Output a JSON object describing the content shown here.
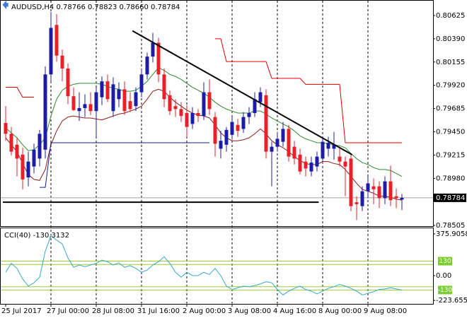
{
  "chart_data": [
    {
      "type": "candlestick",
      "title": "AUDUSD,H4  0.78766 0.78823 0.78660 0.78784",
      "categories": [
        "25 Jul 2017",
        null,
        null,
        null,
        null,
        null,
        null,
        null,
        "27 Jul 00:00",
        null,
        null,
        null,
        null,
        null,
        null,
        null,
        "28 Jul 08:00",
        null,
        null,
        null,
        null,
        null,
        null,
        null,
        "31 Jul 16:00",
        null,
        null,
        null,
        null,
        null,
        null,
        null,
        "2 Aug 00:00",
        null,
        null,
        null,
        null,
        null,
        null,
        null,
        "3 Aug 08:00",
        null,
        null,
        null,
        null,
        null,
        null,
        null,
        "4 Aug 16:00",
        null,
        null,
        null,
        null,
        null,
        null,
        null,
        "8 Aug 00:00",
        null,
        null,
        null,
        null,
        null,
        null,
        null,
        "9 Aug 08:00",
        null,
        null,
        null,
        null,
        null,
        null
      ],
      "open": [
        0.7954,
        0.7943,
        0.7932,
        0.7922,
        0.7899,
        0.791,
        0.7918,
        0.7927,
        0.8003,
        0.8053,
        0.8022,
        0.8009,
        0.7981,
        0.7966,
        0.7969,
        0.7973,
        0.7966,
        0.798,
        0.7996,
        0.7966,
        0.7978,
        0.7988,
        0.7976,
        0.7971,
        0.7985,
        0.8003,
        0.8021,
        0.8035,
        0.8003,
        0.7982,
        0.7971,
        0.7968,
        0.7964,
        0.7953,
        0.7964,
        0.7961,
        0.7985,
        0.796,
        0.7928,
        0.7932,
        0.7942,
        0.7952,
        0.7948,
        0.796,
        0.7964,
        0.7975,
        0.7982,
        0.7925,
        0.793,
        0.7935,
        0.7948,
        0.793,
        0.7922,
        0.7915,
        0.7905,
        0.791,
        0.7918,
        0.7928,
        0.7928,
        0.792,
        0.7915,
        0.7918,
        0.7874,
        0.787,
        0.7885,
        0.789,
        0.789,
        0.7878,
        0.7895,
        0.788,
        0.78766
      ],
      "high": [
        0.7971,
        0.795,
        0.7939,
        0.7929,
        0.7925,
        0.7933,
        0.7947,
        0.8011,
        0.8066,
        0.8064,
        0.8028,
        0.8014,
        0.799,
        0.7985,
        0.7983,
        0.7985,
        0.799,
        0.8001,
        0.8003,
        0.8,
        0.7995,
        0.7996,
        0.7985,
        0.799,
        0.8008,
        0.8025,
        0.8045,
        0.804,
        0.8009,
        0.7987,
        0.7978,
        0.7975,
        0.7972,
        0.797,
        0.7968,
        0.7995,
        0.7998,
        0.7965,
        0.7946,
        0.795,
        0.796,
        0.7958,
        0.7965,
        0.797,
        0.7985,
        0.799,
        0.7988,
        0.7935,
        0.7945,
        0.7955,
        0.7952,
        0.7936,
        0.7928,
        0.792,
        0.792,
        0.7925,
        0.794,
        0.794,
        0.7945,
        0.793,
        0.792,
        0.7923,
        0.788,
        0.789,
        0.79,
        0.7898,
        0.7895,
        0.79,
        0.7911,
        0.7888,
        0.78823
      ],
      "low": [
        0.7936,
        0.7921,
        0.79,
        0.7887,
        0.789,
        0.7903,
        0.791,
        0.7918,
        0.7995,
        0.8016,
        0.7996,
        0.7973,
        0.7966,
        0.7956,
        0.796,
        0.7962,
        0.794,
        0.7972,
        0.7975,
        0.796,
        0.797,
        0.7962,
        0.7965,
        0.7966,
        0.798,
        0.7998,
        0.8015,
        0.7995,
        0.797,
        0.7962,
        0.796,
        0.7955,
        0.794,
        0.7948,
        0.7955,
        0.7957,
        0.7962,
        0.792,
        0.7918,
        0.7925,
        0.7937,
        0.794,
        0.7944,
        0.7953,
        0.796,
        0.797,
        0.7918,
        0.789,
        0.7925,
        0.793,
        0.7915,
        0.7912,
        0.7902,
        0.79,
        0.79,
        0.7905,
        0.7913,
        0.792,
        0.7917,
        0.791,
        0.788,
        0.7865,
        0.7856,
        0.7865,
        0.7878,
        0.7872,
        0.7868,
        0.7872,
        0.787,
        0.7868,
        0.7866
      ],
      "close": [
        0.7943,
        0.7925,
        0.7918,
        0.7897,
        0.7915,
        0.7927,
        0.7943,
        0.8003,
        0.805,
        0.8022,
        0.8009,
        0.7981,
        0.7967,
        0.7969,
        0.7973,
        0.7966,
        0.7985,
        0.7996,
        0.7978,
        0.7993,
        0.7988,
        0.7966,
        0.7968,
        0.7985,
        0.8003,
        0.8021,
        0.8035,
        0.8003,
        0.7978,
        0.7966,
        0.7968,
        0.7961,
        0.795,
        0.7964,
        0.7961,
        0.7985,
        0.7968,
        0.7933,
        0.7936,
        0.7947,
        0.7955,
        0.7946,
        0.796,
        0.7964,
        0.7978,
        0.7985,
        0.7925,
        0.793,
        0.7938,
        0.7948,
        0.792,
        0.7918,
        0.7905,
        0.7908,
        0.7914,
        0.792,
        0.7935,
        0.7934,
        0.7932,
        0.7915,
        0.791,
        0.787,
        0.7872,
        0.7885,
        0.7893,
        0.7887,
        0.7878,
        0.7895,
        0.7876,
        0.7878,
        0.78784
      ],
      "up_color": "#1c1ca8",
      "down_color": "#e8202a",
      "overlays": [
        {
          "color": "#2e8b2e",
          "values": [
            0.7949,
            0.7944,
            0.7939,
            0.7932,
            0.7926,
            0.7927,
            0.7932,
            0.7939,
            0.7961,
            0.7978,
            0.7987,
            0.7991,
            0.7993,
            0.7994,
            0.7994,
            0.7994,
            0.7994,
            0.7993,
            0.7991,
            0.7989,
            0.7988,
            0.7986,
            0.7986,
            0.7987,
            0.7991,
            0.7996,
            0.8003,
            0.801,
            0.8007,
            0.8003,
            0.8001,
            0.7998,
            0.7994,
            0.799,
            0.7987,
            0.7984,
            0.798,
            0.7975,
            0.7971,
            0.7968,
            0.7966,
            0.7964,
            0.7964,
            0.7964,
            0.7966,
            0.7966,
            0.7963,
            0.7959,
            0.7956,
            0.7953,
            0.795,
            0.7946,
            0.7941,
            0.7938,
            0.7936,
            0.7934,
            0.7934,
            0.7933,
            0.7932,
            0.7931,
            0.7929,
            0.7923,
            0.7918,
            0.7914,
            0.7912,
            0.7909,
            0.7907,
            0.7907,
            0.7906,
            0.7903,
            0.79
          ]
        },
        {
          "color": "#8b1a1a",
          "values": [
            0.7939,
            0.7932,
            0.7925,
            0.7913,
            0.7902,
            0.7897,
            0.7896,
            0.7907,
            0.7932,
            0.7946,
            0.7956,
            0.796,
            0.7961,
            0.796,
            0.7959,
            0.7959,
            0.7958,
            0.7957,
            0.7959,
            0.7961,
            0.7963,
            0.7964,
            0.7966,
            0.7968,
            0.7971,
            0.7978,
            0.7986,
            0.7988,
            0.7986,
            0.798,
            0.7975,
            0.7971,
            0.7967,
            0.7964,
            0.7962,
            0.7961,
            0.7959,
            0.7952,
            0.7944,
            0.7939,
            0.7936,
            0.7936,
            0.7937,
            0.7939,
            0.7943,
            0.7948,
            0.7943,
            0.7936,
            0.7932,
            0.7929,
            0.7925,
            0.792,
            0.7916,
            0.7913,
            0.7912,
            0.7912,
            0.7915,
            0.7915,
            0.7913,
            0.7912,
            0.7907,
            0.79,
            0.7893,
            0.7887,
            0.7885,
            0.7883,
            0.788,
            0.788,
            0.7879,
            0.7877,
            0.7876
          ]
        },
        {
          "color": "#e00000",
          "values": [
            0.799,
            0.799,
            0.799,
            0.798,
            0.798,
            0.798,
            null,
            null,
            null,
            null,
            null,
            null,
            null,
            null,
            null,
            null,
            null,
            null,
            null,
            null,
            null,
            null,
            null,
            null,
            null,
            null,
            null,
            null,
            null,
            null,
            null,
            null,
            null,
            null,
            null,
            null,
            null,
            0.8039,
            0.8039,
            0.8016,
            0.8016,
            0.8016,
            0.8016,
            0.8016,
            0.8016,
            0.8016,
            0.8016,
            0.7999,
            0.7999,
            0.7999,
            0.7999,
            0.7999,
            0.7999,
            0.7993,
            0.7993,
            0.7993,
            0.7993,
            0.7993,
            0.7993,
            0.7993,
            0.7934,
            0.7934,
            0.7934,
            0.7934,
            0.7934,
            0.7934,
            0.7934,
            0.7934,
            0.7934,
            0.7934,
            0.7934
          ]
        },
        {
          "color": "#1a1a8c",
          "values": [
            null,
            null,
            null,
            null,
            null,
            null,
            0.7889,
            0.7889,
            0.7934,
            0.7934,
            0.7934,
            0.7934,
            0.7934,
            0.7934,
            0.7934,
            0.7934,
            0.7934,
            0.7934,
            0.7934,
            0.7934,
            0.7934,
            0.7934,
            0.7934,
            0.7934,
            0.7934,
            0.7934,
            0.7934,
            0.7934,
            0.7934,
            0.7934,
            0.7934,
            0.7934,
            0.7934,
            0.7934,
            0.7934,
            0.7934,
            0.7934,
            null,
            null,
            null,
            null,
            null,
            null,
            null,
            null,
            null,
            null,
            null,
            null,
            null,
            null,
            null,
            null,
            null,
            null,
            null,
            null,
            null,
            null,
            null,
            null,
            null,
            null,
            null,
            null,
            null,
            null,
            null,
            null,
            null,
            null
          ]
        }
      ],
      "trendlines": [
        {
          "color": "#000000",
          "x": [
            22.4,
            61.2
          ],
          "y": [
            0.8047,
            0.7922
          ]
        },
        {
          "color": "#000000",
          "x": [
            -0.5,
            55.3
          ],
          "y": [
            0.7874,
            0.7874
          ]
        }
      ],
      "ylim": [
        0.78498,
        0.80753
      ],
      "yticks": [
        0.80625,
        {
          "value": 0.8039,
          "label": "0.80390"
        },
        0.80155,
        {
          "value": 0.7992,
          "label": "0.79920"
        },
        0.79685,
        {
          "value": 0.7945,
          "label": "0.79450"
        },
        0.79215,
        {
          "value": 0.7898,
          "label": "0.78980"
        },
        0.78505
      ]
    },
    {
      "type": "line",
      "title": "CCI(40) -130.3132",
      "color": "#3aa8cc",
      "values": [
        30,
        110,
        65,
        -30,
        -95,
        -65,
        -15,
        220,
        360,
        320,
        285,
        160,
        75,
        95,
        80,
        95,
        110,
        140,
        125,
        95,
        115,
        75,
        90,
        65,
        30,
        50,
        95,
        125,
        170,
        110,
        30,
        -15,
        30,
        0,
        0,
        30,
        10,
        65,
        0,
        -95,
        -125,
        -110,
        -95,
        -100,
        -90,
        -75,
        -55,
        -65,
        -125,
        -175,
        -140,
        -115,
        -95,
        -125,
        -140,
        -165,
        -140,
        -115,
        -100,
        -80,
        -95,
        -115,
        -140,
        -175,
        -160,
        -145,
        -125,
        -120,
        -110,
        -120,
        -130.3132
      ],
      "levels": [
        130,
        -130
      ],
      "sublevels": [
        100,
        -100
      ],
      "level_color": "#9acd32",
      "ylim": [
        -242,
        420
      ],
      "yticks": [
        375.9058,
        {
          "value": 0,
          "label": "0.00"
        },
        -223.6552
      ]
    }
  ]
}
